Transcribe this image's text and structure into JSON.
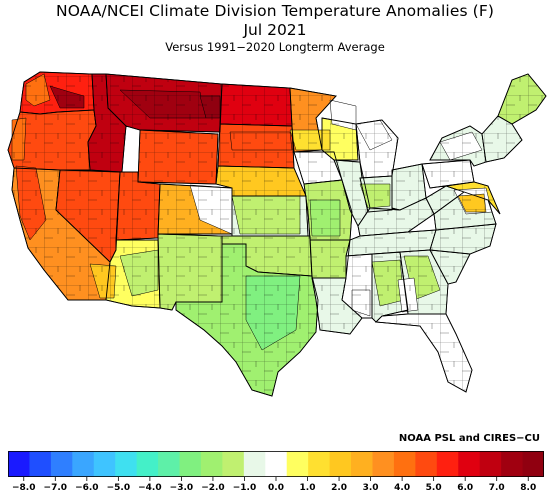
{
  "title": "NOAA/NCEI Climate Division Temperature Anomalies (F)",
  "period": "Jul 2021",
  "subtitle": "Versus 1991−2020 Longterm Average",
  "credit": "NOAA PSL and CIRES−CU",
  "colorbar": {
    "colors": [
      "#1a1aff",
      "#1f4fff",
      "#2f7fff",
      "#3aa6ff",
      "#3fc4ff",
      "#3fe0f0",
      "#44f0c8",
      "#5ef0a8",
      "#80f080",
      "#a0f070",
      "#c0f070",
      "#e8f8e8",
      "#ffffff",
      "#ffff60",
      "#ffe030",
      "#ffc820",
      "#ffb020",
      "#ff9020",
      "#ff7010",
      "#ff4a10",
      "#ff2010",
      "#e00010",
      "#c00010",
      "#a00010",
      "#900010"
    ],
    "tick_labels": [
      "−8.0",
      "−7.0",
      "−6.0",
      "−5.0",
      "−4.0",
      "−3.0",
      "−2.0",
      "−1.0",
      "0.0",
      "1.0",
      "2.0",
      "3.0",
      "4.0",
      "5.0",
      "6.0",
      "7.0",
      "8.0"
    ],
    "tick_values": [
      -8,
      -7,
      -6,
      -5,
      -4,
      -3,
      -2,
      -1,
      0,
      1,
      2,
      3,
      4,
      5,
      6,
      7,
      8
    ],
    "range": [
      -8.5,
      8.5
    ]
  },
  "regions": [
    {
      "name": "Washington",
      "anomaly": 5.5
    },
    {
      "name": "Oregon",
      "anomaly": 5.0
    },
    {
      "name": "California",
      "anomaly": 3.5
    },
    {
      "name": "Nevada",
      "anomaly": 4.5
    },
    {
      "name": "Idaho",
      "anomaly": 6.5
    },
    {
      "name": "Montana",
      "anomaly": 6.5
    },
    {
      "name": "Wyoming",
      "anomaly": 4.5
    },
    {
      "name": "Utah",
      "anomaly": 4.5
    },
    {
      "name": "Arizona",
      "anomaly": 1.0
    },
    {
      "name": "Colorado",
      "anomaly": 2.5
    },
    {
      "name": "New Mexico",
      "anomaly": -1.5
    },
    {
      "name": "North Dakota",
      "anomaly": 6.0
    },
    {
      "name": "South Dakota",
      "anomaly": 5.0
    },
    {
      "name": "Nebraska",
      "anomaly": 2.0
    },
    {
      "name": "Kansas",
      "anomaly": -1.0
    },
    {
      "name": "Oklahoma",
      "anomaly": -1.5
    },
    {
      "name": "Texas",
      "anomaly": -2.0
    },
    {
      "name": "Minnesota",
      "anomaly": 3.5
    },
    {
      "name": "Iowa",
      "anomaly": 0.2
    },
    {
      "name": "Missouri",
      "anomaly": -1.5
    },
    {
      "name": "Arkansas",
      "anomaly": -1.5
    },
    {
      "name": "Louisiana",
      "anomaly": -1.0
    },
    {
      "name": "Wisconsin",
      "anomaly": 0.5
    },
    {
      "name": "Illinois",
      "anomaly": -0.5
    },
    {
      "name": "Michigan",
      "anomaly": 0.2
    },
    {
      "name": "Indiana",
      "anomaly": -1.0
    },
    {
      "name": "Ohio",
      "anomaly": -0.5
    },
    {
      "name": "Kentucky",
      "anomaly": -1.0
    },
    {
      "name": "Tennessee",
      "anomaly": -1.0
    },
    {
      "name": "Mississippi",
      "anomaly": -0.3
    },
    {
      "name": "Alabama",
      "anomaly": -1.0
    },
    {
      "name": "Georgia",
      "anomaly": -1.0
    },
    {
      "name": "Florida",
      "anomaly": -0.3
    },
    {
      "name": "South Carolina",
      "anomaly": -1.0
    },
    {
      "name": "North Carolina",
      "anomaly": -0.5
    },
    {
      "name": "Virginia",
      "anomaly": -0.5
    },
    {
      "name": "West Virginia",
      "anomaly": -1.0
    },
    {
      "name": "Pennsylvania",
      "anomaly": 0.2
    },
    {
      "name": "New York",
      "anomaly": -0.5
    },
    {
      "name": "Maryland",
      "anomaly": 1.5
    },
    {
      "name": "New England",
      "anomaly": -1.0
    },
    {
      "name": "Maine",
      "anomaly": -1.5
    }
  ]
}
